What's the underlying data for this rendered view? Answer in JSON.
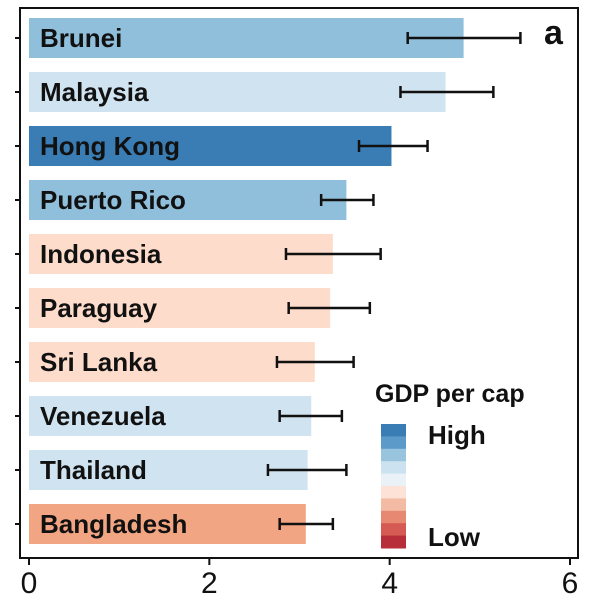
{
  "chart_data": {
    "type": "bar",
    "orientation": "horizontal",
    "panel_letter": "a",
    "categories": [
      "Brunei",
      "Malaysia",
      "Hong Kong",
      "Puerto Rico",
      "Indonesia",
      "Paraguay",
      "Sri Lanka",
      "Venezuela",
      "Thailand",
      "Bangladesh"
    ],
    "values": [
      4.82,
      4.62,
      4.02,
      3.52,
      3.37,
      3.34,
      3.17,
      3.13,
      3.09,
      3.07
    ],
    "error_low": [
      4.2,
      4.12,
      3.66,
      3.24,
      2.85,
      2.88,
      2.75,
      2.78,
      2.65,
      2.78
    ],
    "error_high": [
      5.45,
      5.15,
      4.42,
      3.82,
      3.9,
      3.78,
      3.6,
      3.47,
      3.52,
      3.37
    ],
    "gdp_level": [
      2,
      1,
      3,
      2,
      -1,
      -1,
      -1,
      1,
      1,
      -2
    ],
    "xlim": [
      0,
      6
    ],
    "xticks": [
      0,
      2,
      4,
      6
    ],
    "grid": false,
    "legend": {
      "title": "GDP per cap",
      "high_label": "High",
      "low_label": "Low",
      "placement": "bottom-right",
      "colors": [
        "#3a7db5",
        "#5c9bc9",
        "#98c4de",
        "#cde2f0",
        "#eaf2f8",
        "#fde3d7",
        "#f4bba4",
        "#e78873",
        "#d45a53",
        "#b72e3a"
      ]
    },
    "level_colors": {
      "3": "#3a7db5",
      "2": "#90bfdc",
      "1": "#d0e3f1",
      "-1": "#fddccb",
      "-2": "#f2a582"
    }
  }
}
